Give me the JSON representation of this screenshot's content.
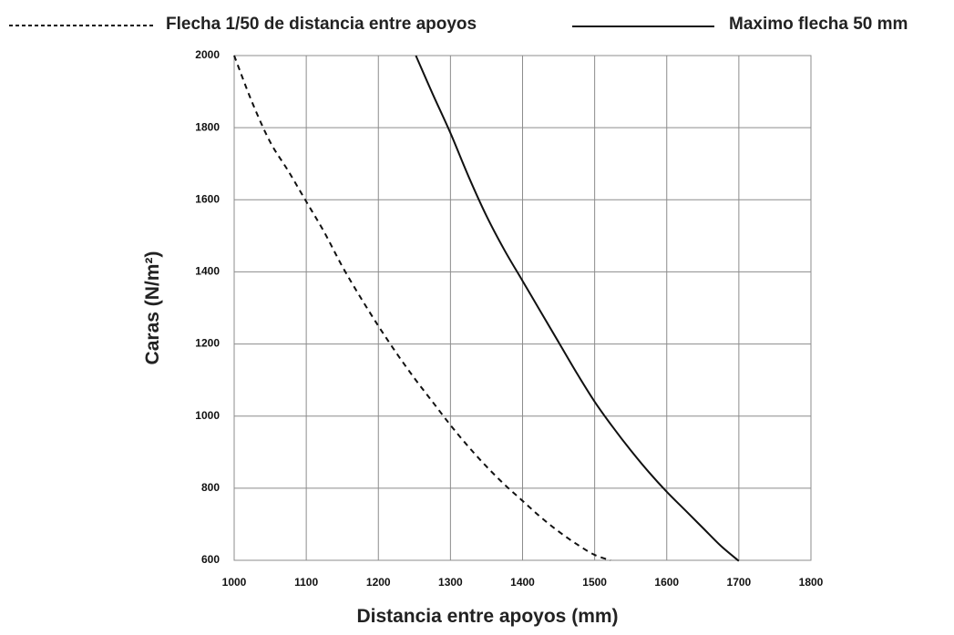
{
  "chart_data": {
    "type": "line",
    "title": "",
    "xlabel": "Distancia entre apoyos (mm)",
    "ylabel": "Caras (N/m²)",
    "xlim": [
      1000,
      1800
    ],
    "ylim": [
      600,
      2000
    ],
    "x_ticks": [
      "1000",
      "1100",
      "1200",
      "1300",
      "1400",
      "1500",
      "1600",
      "1700",
      "1800"
    ],
    "y_ticks": [
      "600",
      "800",
      "1000",
      "1200",
      "1400",
      "1600",
      "1800",
      "2000"
    ],
    "grid": true,
    "legend_position": "top",
    "colors": {
      "grid": "#8c8c8c",
      "line": "#111111",
      "text": "#222222"
    },
    "series": [
      {
        "name": "Flecha 1/50 de distancia entre apoyos",
        "style": "dashed",
        "x": [
          1000,
          1025,
          1050,
          1075,
          1100,
          1125,
          1150,
          1175,
          1200,
          1225,
          1250,
          1275,
          1300,
          1325,
          1350,
          1375,
          1400,
          1425,
          1450,
          1475,
          1500,
          1522
        ],
        "y": [
          2000,
          1870,
          1760,
          1680,
          1595,
          1510,
          1415,
          1330,
          1250,
          1175,
          1105,
          1040,
          975,
          915,
          860,
          810,
          765,
          720,
          680,
          645,
          615,
          600
        ]
      },
      {
        "name": "Maximo flecha 50 mm",
        "style": "solid",
        "x": [
          1252,
          1275,
          1300,
          1325,
          1350,
          1375,
          1400,
          1425,
          1450,
          1475,
          1500,
          1525,
          1550,
          1575,
          1600,
          1625,
          1650,
          1675,
          1700
        ],
        "y": [
          2000,
          1895,
          1785,
          1665,
          1555,
          1460,
          1375,
          1290,
          1205,
          1120,
          1040,
          970,
          905,
          845,
          790,
          740,
          690,
          640,
          598
        ]
      }
    ]
  }
}
